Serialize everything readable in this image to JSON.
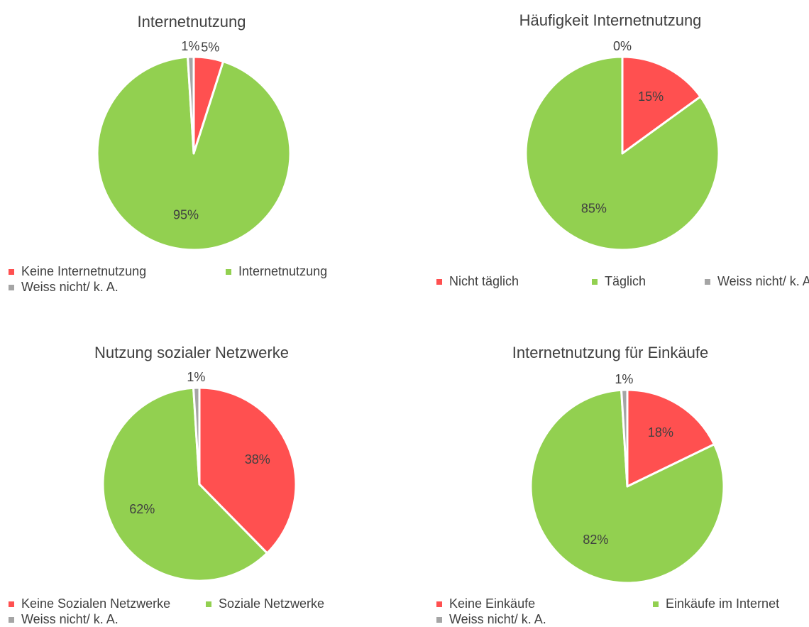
{
  "chart_data": [
    {
      "type": "pie",
      "title": "Internetnutzung",
      "categories": [
        "Keine Internetnutzung",
        "Internetnutzung",
        "Weiss nicht/ k. A."
      ],
      "values": [
        5,
        95,
        1
      ],
      "value_labels": [
        "5%",
        "95%",
        "1%"
      ],
      "colors": [
        "#ff5050",
        "#92d050",
        "#a5a5a5"
      ]
    },
    {
      "type": "pie",
      "title": "Häufigkeit Internetnutzung",
      "categories": [
        "Nicht täglich",
        "Täglich",
        "Weiss nicht/ k. A."
      ],
      "values": [
        15,
        85,
        0
      ],
      "value_labels": [
        "15%",
        "85%",
        "0%"
      ],
      "colors": [
        "#ff5050",
        "#92d050",
        "#a5a5a5"
      ]
    },
    {
      "type": "pie",
      "title": "Nutzung sozialer Netzwerke",
      "categories": [
        "Keine Sozialen Netzwerke",
        "Soziale Netzwerke",
        "Weiss nicht/ k. A."
      ],
      "values": [
        38,
        62,
        1
      ],
      "value_labels": [
        "38%",
        "62%",
        "1%"
      ],
      "colors": [
        "#ff5050",
        "#92d050",
        "#a5a5a5"
      ]
    },
    {
      "type": "pie",
      "title": "Internetnutzung für Einkäufe",
      "categories": [
        "Keine Einkäufe",
        "Einkäufe im Internet",
        "Weiss nicht/ k. A."
      ],
      "values": [
        18,
        82,
        1
      ],
      "value_labels": [
        "18%",
        "82%",
        "1%"
      ],
      "colors": [
        "#ff5050",
        "#92d050",
        "#a5a5a5"
      ]
    }
  ]
}
